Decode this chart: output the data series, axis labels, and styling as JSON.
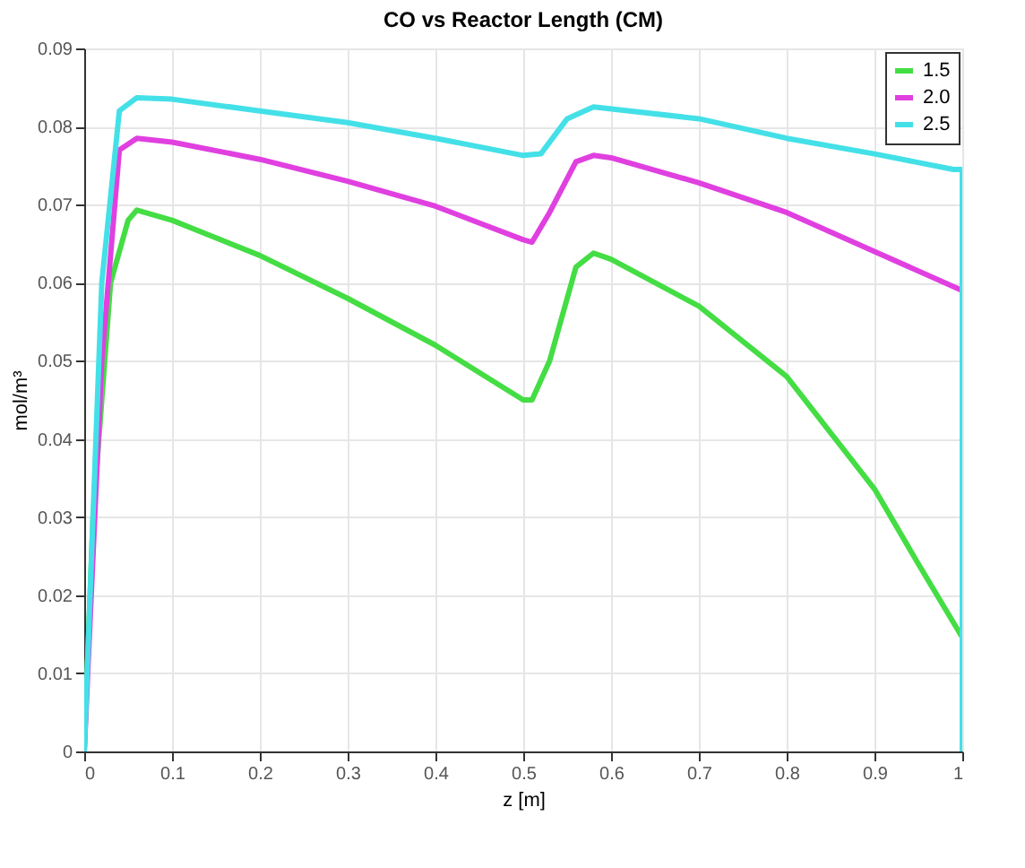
{
  "chart_data": {
    "type": "line",
    "title": "CO vs Reactor Length (CM)",
    "xlabel": "z [m]",
    "ylabel": "mol/m³",
    "xlim": [
      0,
      1
    ],
    "xticks": [
      0,
      0.1,
      0.2,
      0.3,
      0.4,
      0.5,
      0.6,
      0.7,
      0.8,
      0.9,
      1
    ],
    "ylim": [
      0,
      0.09
    ],
    "yticks": [
      0,
      0.01,
      0.02,
      0.03,
      0.04,
      0.05,
      0.06,
      0.07,
      0.08,
      0.09
    ],
    "grid": true,
    "legend": "top right",
    "marker": "none",
    "line_style": "solid",
    "series": [
      {
        "name": "1.5",
        "color": "#44dd44",
        "x": [
          0,
          0.01,
          0.03,
          0.05,
          0.06,
          0.1,
          0.2,
          0.3,
          0.4,
          0.5,
          0.51,
          0.53,
          0.56,
          0.58,
          0.6,
          0.7,
          0.8,
          0.9,
          0.95,
          1.0,
          1.0
        ],
        "values": [
          0,
          0.03,
          0.06,
          0.068,
          0.0693,
          0.068,
          0.0635,
          0.058,
          0.052,
          0.045,
          0.045,
          0.05,
          0.062,
          0.0638,
          0.063,
          0.057,
          0.048,
          0.0336,
          0.024,
          0.0146,
          0
        ]
      },
      {
        "name": "2.0",
        "color": "#e040e0",
        "x": [
          0,
          0.02,
          0.04,
          0.06,
          0.1,
          0.2,
          0.3,
          0.4,
          0.5,
          0.51,
          0.53,
          0.56,
          0.58,
          0.6,
          0.7,
          0.8,
          0.9,
          1.0,
          1.0
        ],
        "values": [
          0,
          0.05,
          0.077,
          0.0785,
          0.078,
          0.0758,
          0.073,
          0.0698,
          0.0655,
          0.0652,
          0.069,
          0.0755,
          0.0763,
          0.076,
          0.0728,
          0.069,
          0.064,
          0.059,
          0
        ]
      },
      {
        "name": "2.5",
        "color": "#44e0e8",
        "x": [
          0,
          0.02,
          0.04,
          0.06,
          0.1,
          0.2,
          0.3,
          0.4,
          0.5,
          0.52,
          0.55,
          0.58,
          0.7,
          0.8,
          0.9,
          0.99,
          1.0,
          1.0
        ],
        "values": [
          0,
          0.06,
          0.082,
          0.0837,
          0.0835,
          0.082,
          0.0805,
          0.0785,
          0.0763,
          0.0765,
          0.081,
          0.0825,
          0.081,
          0.0785,
          0.0765,
          0.0745,
          0.0745,
          0
        ]
      }
    ]
  }
}
